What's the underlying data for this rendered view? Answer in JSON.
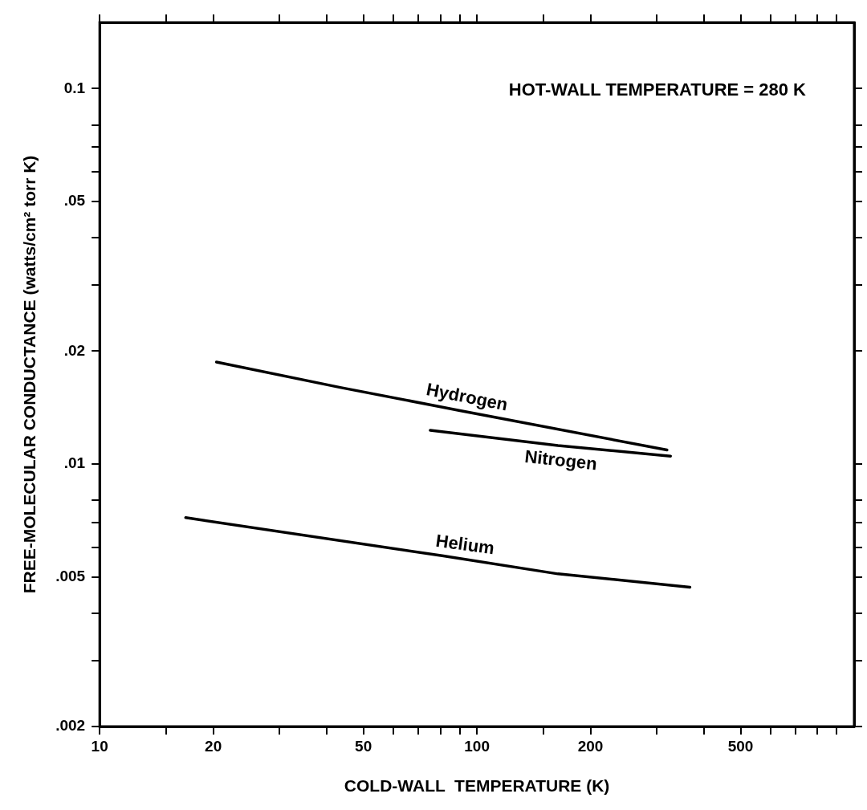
{
  "chart_data": {
    "type": "line",
    "xlabel": "COLD-WALL  TEMPERATURE (K)",
    "ylabel": "FREE-MOLECULAR CONDUCTANCE (watts/cm² torr K)",
    "annotations": [
      "HOT-WALL TEMPERATURE = 280 K"
    ],
    "log": "xy",
    "xlim": [
      10,
      1000
    ],
    "ylim": [
      0.002,
      0.15
    ],
    "xticks": [
      10,
      {
        "value": 15,
        "label": null
      },
      20,
      {
        "value": 30,
        "label": null
      },
      {
        "value": 40,
        "label": null
      },
      50,
      {
        "value": 60,
        "label": null
      },
      {
        "value": 70,
        "label": null
      },
      {
        "value": 80,
        "label": null
      },
      {
        "value": 90,
        "label": null
      },
      100,
      {
        "value": 150,
        "label": null
      },
      200,
      {
        "value": 300,
        "label": null
      },
      {
        "value": 400,
        "label": null
      },
      500,
      {
        "value": 600,
        "label": null
      },
      {
        "value": 700,
        "label": null
      },
      {
        "value": 800,
        "label": null
      },
      {
        "value": 900,
        "label": null
      }
    ],
    "yticks": [
      {
        "value": 0.002,
        "label": ".002"
      },
      {
        "value": 0.003,
        "label": null
      },
      {
        "value": 0.004,
        "label": null
      },
      {
        "value": 0.005,
        "label": ".005"
      },
      {
        "value": 0.006,
        "label": null
      },
      {
        "value": 0.007,
        "label": null
      },
      {
        "value": 0.008,
        "label": null
      },
      {
        "value": 0.01,
        "label": ".01"
      },
      {
        "value": 0.02,
        "label": ".02"
      },
      {
        "value": 0.03,
        "label": null
      },
      {
        "value": 0.04,
        "label": null
      },
      {
        "value": 0.05,
        "label": ".05"
      },
      {
        "value": 0.06,
        "label": null
      },
      {
        "value": 0.07,
        "label": null
      },
      {
        "value": 0.08,
        "label": null
      },
      {
        "value": 0.1,
        "label": "0.1"
      }
    ],
    "grid": false,
    "legend": false,
    "marker": "none",
    "line_style": "solid",
    "series": [
      {
        "name": "Hydrogen",
        "color": "#000000",
        "x": [
          20.4,
          43.4,
          89.6,
          319
        ],
        "values": [
          0.0187,
          0.016,
          0.0139,
          0.0109
        ]
      },
      {
        "name": "Nitrogen",
        "color": "#000000",
        "x": [
          75.2,
          164,
          326
        ],
        "values": [
          0.0123,
          0.0112,
          0.0105
        ]
      },
      {
        "name": "Helium",
        "color": "#000000",
        "x": [
          16.9,
          80.9,
          164,
          367
        ],
        "values": [
          0.0072,
          0.0057,
          0.0051,
          0.0047
        ]
      }
    ]
  }
}
